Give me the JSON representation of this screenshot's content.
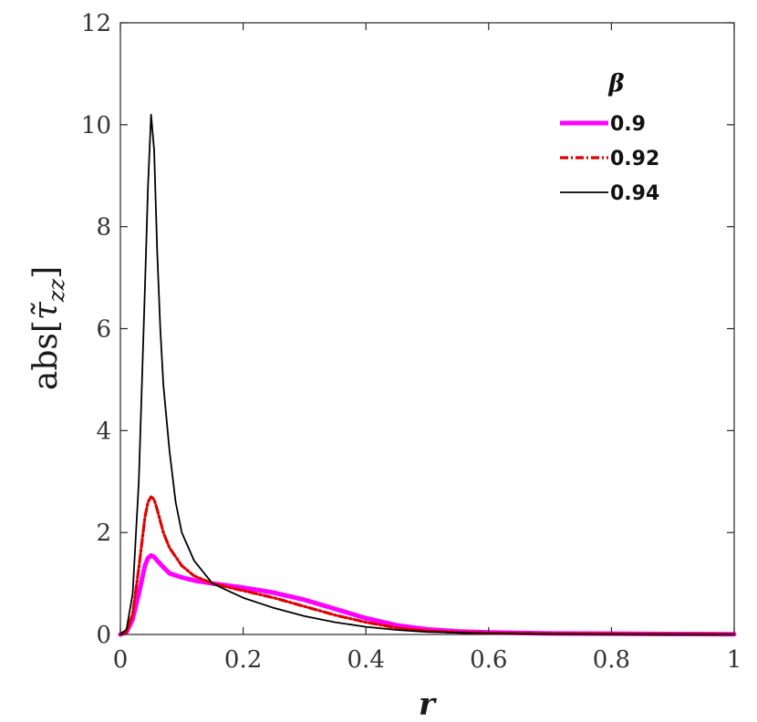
{
  "chart_data": {
    "type": "line",
    "xlabel": "r",
    "ylabel": "abs[τ̃zz]",
    "ylabel_parts": {
      "prefix": "abs[",
      "symbol": "τ̃",
      "subscript": "zz",
      "suffix": "]"
    },
    "xlim": [
      0,
      1
    ],
    "ylim": [
      0,
      12
    ],
    "xticks": [
      0,
      0.2,
      0.4,
      0.6,
      0.8,
      1
    ],
    "xtick_labels": [
      "0",
      "0.2",
      "0.4",
      "0.6",
      "0.8",
      "1"
    ],
    "yticks": [
      0,
      2,
      4,
      6,
      8,
      10,
      12
    ],
    "ytick_labels": [
      "0",
      "2",
      "4",
      "6",
      "8",
      "10",
      "12"
    ],
    "grid": false,
    "legend": {
      "title": "β",
      "placement": "top-right"
    },
    "series": [
      {
        "name": "0.9",
        "color": "#ff00ff",
        "style": "solid-thick",
        "x": [
          0,
          0.01,
          0.02,
          0.03,
          0.04,
          0.045,
          0.05,
          0.055,
          0.06,
          0.07,
          0.08,
          0.1,
          0.12,
          0.15,
          0.2,
          0.25,
          0.3,
          0.35,
          0.4,
          0.45,
          0.5,
          0.55,
          0.6,
          0.7,
          0.8,
          0.9,
          1.0
        ],
        "y": [
          0,
          0.05,
          0.3,
          0.8,
          1.35,
          1.5,
          1.55,
          1.52,
          1.45,
          1.32,
          1.2,
          1.12,
          1.06,
          1.0,
          0.92,
          0.82,
          0.68,
          0.5,
          0.32,
          0.18,
          0.1,
          0.06,
          0.04,
          0.02,
          0.015,
          0.01,
          0.005
        ]
      },
      {
        "name": "0.92",
        "color": "#e00000",
        "style": "dash-dot",
        "x": [
          0,
          0.01,
          0.02,
          0.03,
          0.04,
          0.045,
          0.05,
          0.055,
          0.06,
          0.07,
          0.08,
          0.1,
          0.12,
          0.15,
          0.2,
          0.25,
          0.3,
          0.35,
          0.4,
          0.45,
          0.5,
          0.55,
          0.6,
          0.7,
          0.8,
          0.9,
          1.0
        ],
        "y": [
          0,
          0.05,
          0.4,
          1.3,
          2.3,
          2.6,
          2.7,
          2.65,
          2.45,
          2.0,
          1.7,
          1.35,
          1.15,
          1.0,
          0.86,
          0.72,
          0.55,
          0.38,
          0.24,
          0.13,
          0.07,
          0.04,
          0.03,
          0.015,
          0.01,
          0.006,
          0.003
        ]
      },
      {
        "name": "0.94",
        "color": "#000000",
        "style": "solid-thin",
        "x": [
          0,
          0.01,
          0.02,
          0.03,
          0.04,
          0.045,
          0.05,
          0.055,
          0.06,
          0.065,
          0.07,
          0.08,
          0.09,
          0.1,
          0.12,
          0.15,
          0.2,
          0.25,
          0.3,
          0.35,
          0.4,
          0.45,
          0.5,
          0.6,
          0.7,
          0.8,
          0.9,
          1.0
        ],
        "y": [
          0,
          0.1,
          0.8,
          3.0,
          6.8,
          8.8,
          10.2,
          9.5,
          7.5,
          6.0,
          4.9,
          3.6,
          2.6,
          2.0,
          1.45,
          1.0,
          0.72,
          0.52,
          0.36,
          0.24,
          0.15,
          0.09,
          0.05,
          0.02,
          0.01,
          0.005,
          0.003,
          0.002
        ]
      }
    ]
  }
}
